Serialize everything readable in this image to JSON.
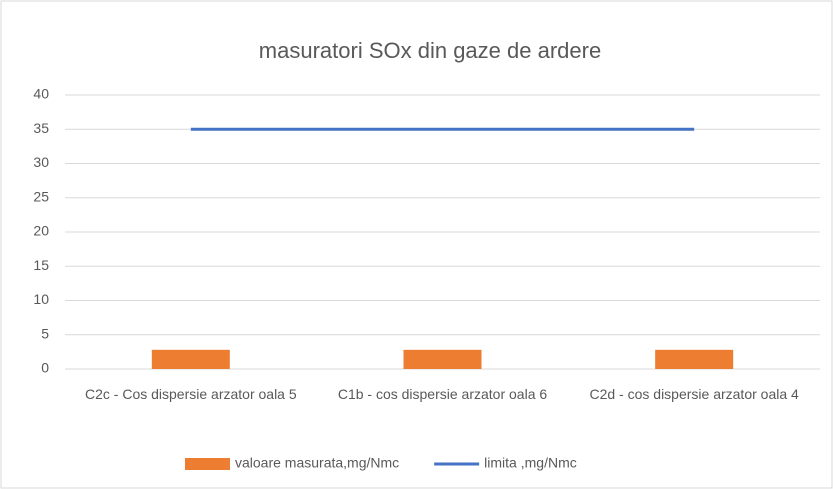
{
  "chart_data": {
    "type": "combo",
    "title": "masuratori SOx din gaze de ardere",
    "categories": [
      "C2c - Cos dispersie arzator oala 5",
      "C1b - cos dispersie arzator oala 6",
      "C2d - cos dispersie arzator oala 4"
    ],
    "series": [
      {
        "name": "valoare masurata,mg/Nmc",
        "type": "bar",
        "color": "#ed7d31",
        "values": [
          2.8,
          2.8,
          2.8
        ]
      },
      {
        "name": "limita ,mg/Nmc",
        "type": "line",
        "color": "#4472c4",
        "values": [
          35,
          35,
          35
        ]
      }
    ],
    "ylim": [
      0,
      40
    ],
    "yticks": [
      0,
      5,
      10,
      15,
      20,
      25,
      30,
      35,
      40
    ],
    "grid": true,
    "legend": "bottom"
  }
}
